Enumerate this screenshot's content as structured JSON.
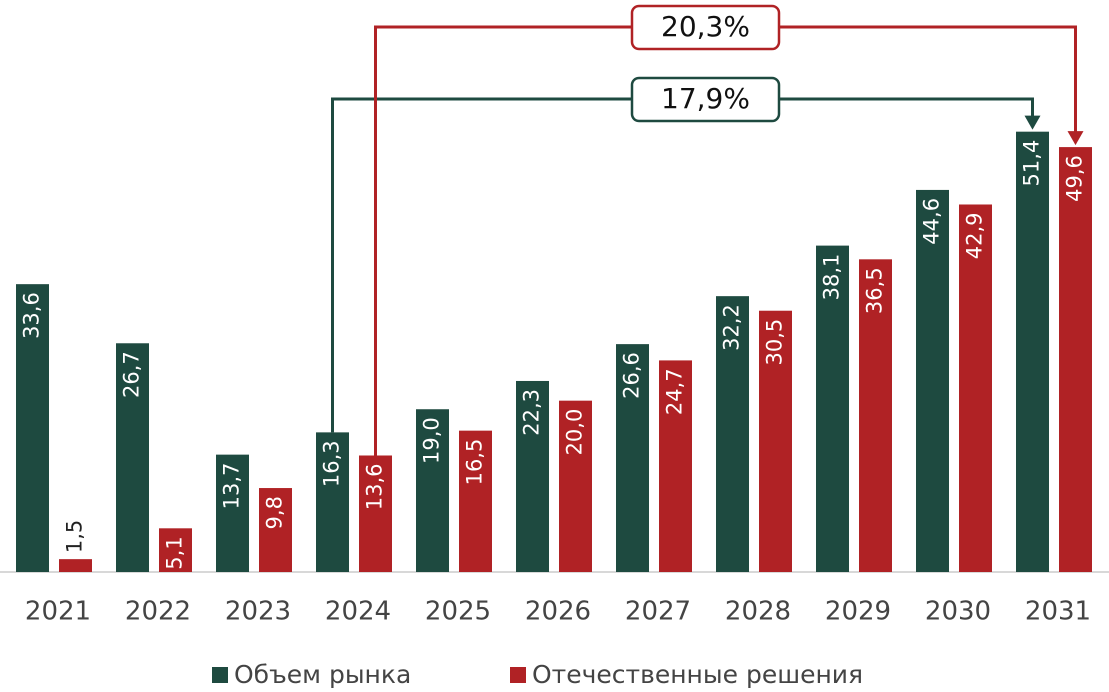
{
  "chart_data": {
    "type": "bar",
    "categories": [
      "2021",
      "2022",
      "2023",
      "2024",
      "2025",
      "2026",
      "2027",
      "2028",
      "2029",
      "2030",
      "2031"
    ],
    "series": [
      {
        "name": "Объем рынка",
        "color": "#1e4a40",
        "values": [
          33.6,
          26.7,
          13.7,
          16.3,
          19.0,
          22.3,
          26.6,
          32.2,
          38.1,
          44.6,
          51.4
        ],
        "value_labels": [
          "33,6",
          "26,7",
          "13,7",
          "16,3",
          "19,0",
          "22,3",
          "26,6",
          "32,2",
          "38,1",
          "44,6",
          "51,4"
        ]
      },
      {
        "name": "Отечественные решения",
        "color": "#b02225",
        "values": [
          1.5,
          5.1,
          9.8,
          13.6,
          16.5,
          20.0,
          24.7,
          30.5,
          36.5,
          42.9,
          49.6
        ],
        "value_labels": [
          "1,5",
          "5,1",
          "9,8",
          "13,6",
          "16,5",
          "20,0",
          "24,7",
          "30,5",
          "36,5",
          "42,9",
          "49,6"
        ]
      }
    ],
    "ylim": [
      0,
      60
    ],
    "annotations": [
      {
        "text": "17,9%",
        "color": "#1e4a40"
      },
      {
        "text": "20,3%",
        "color": "#b02225"
      }
    ]
  }
}
